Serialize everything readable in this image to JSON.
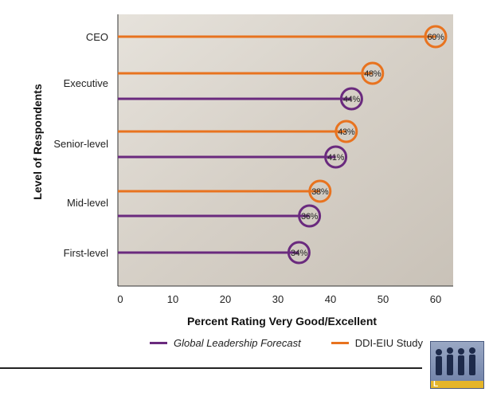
{
  "chart_data": {
    "type": "bar",
    "orientation": "horizontal",
    "categories": [
      "CEO",
      "Executive",
      "Senior-level",
      "Mid-level",
      "First-level"
    ],
    "series": [
      {
        "name": "DDI-EIU Study",
        "color": "#e8731f",
        "values": [
          60,
          48,
          43,
          38,
          null
        ]
      },
      {
        "name": "Global Leadership Forecast",
        "color": "#6a2a7e",
        "values": [
          null,
          44,
          41,
          36,
          34
        ]
      }
    ],
    "data_labels": {
      "DDI-EIU Study": [
        "60%",
        "48%",
        "43%",
        "38%",
        null
      ],
      "Global Leadership Forecast": [
        null,
        "44%",
        "41%",
        "36%",
        "34%"
      ]
    },
    "xlim": [
      0,
      60
    ],
    "x_ticks": [
      "0",
      "10",
      "20",
      "30",
      "40",
      "50",
      "60"
    ],
    "xlabel": "Percent Rating Very Good/Excellent",
    "ylabel": "Level of Respondents",
    "grid": false,
    "legend_position": "bottom"
  },
  "legend": [
    {
      "label": "Global Leadership Forecast",
      "color": "#6a2a7e",
      "italic": true
    },
    {
      "label": "DDI-EIU Study",
      "color": "#e8731f",
      "italic": false
    }
  ],
  "logo": {
    "letter": "L"
  },
  "background": {
    "photo_tint": "#cfc9bf",
    "plot_background": "#d9d4cc"
  }
}
